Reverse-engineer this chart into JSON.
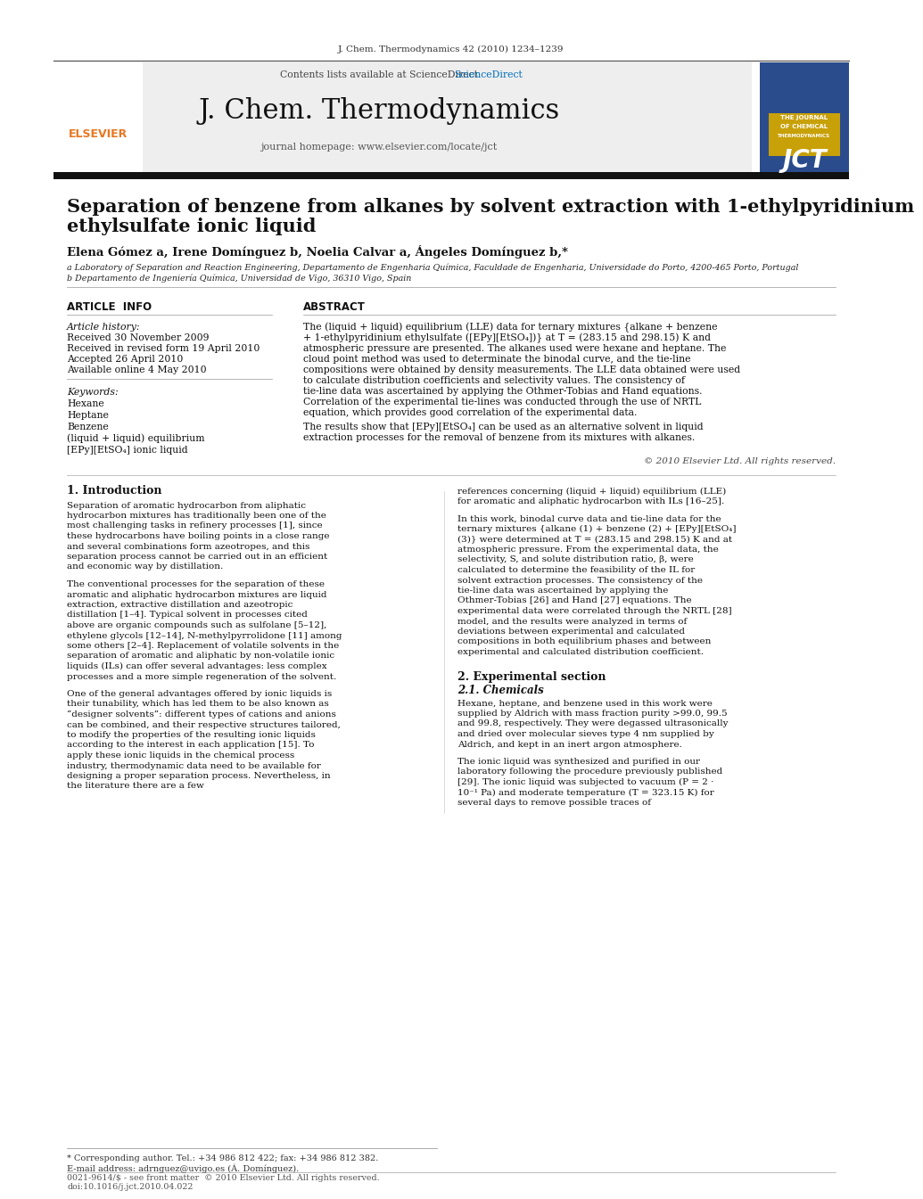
{
  "journal_ref": "J. Chem. Thermodynamics 42 (2010) 1234–1239",
  "contents_line": "Contents lists available at ScienceDirect",
  "sciencedirect_color": "#0070BB",
  "journal_name": "J. Chem. Thermodynamics",
  "journal_homepage": "journal homepage: www.elsevier.com/locate/jct",
  "title_line1": "Separation of benzene from alkanes by solvent extraction with 1-ethylpyridinium",
  "title_line2": "ethylsulfate ionic liquid",
  "authors": "Elena Gómez a, Irene Domínguez b, Noelia Calvar a, Ángeles Domínguez b,*",
  "affil_a": "a Laboratory of Separation and Reaction Engineering, Departamento de Engenharia Química, Faculdade de Engenharia, Universidade do Porto, 4200-465 Porto, Portugal",
  "affil_b": "b Departamento de Ingeniería Química, Universidad de Vigo, 36310 Vigo, Spain",
  "section_article_info": "ARTICLE  INFO",
  "section_abstract": "ABSTRACT",
  "article_history_label": "Article history:",
  "received": "Received 30 November 2009",
  "received_revised": "Received in revised form 19 April 2010",
  "accepted": "Accepted 26 April 2010",
  "available": "Available online 4 May 2010",
  "keywords_label": "Keywords:",
  "keywords": [
    "Hexane",
    "Heptane",
    "Benzene",
    "(liquid + liquid) equilibrium",
    "[EPy][EtSO₄] ionic liquid"
  ],
  "abstract_text": "The (liquid + liquid) equilibrium (LLE) data for ternary mixtures {alkane + benzene + 1-ethylpyridinium ethylsulfate ([EPy][EtSO₄])} at T = (283.15 and 298.15) K and atmospheric pressure are presented. The alkanes used were hexane and heptane. The cloud point method was used to determinate the binodal curve, and the tie-line compositions were obtained by density measurements. The LLE data obtained were used to calculate distribution coefficients and selectivity values. The consistency of tie-line data was ascertained by applying the Othmer-Tobias and Hand equations. Correlation of the experimental tie-lines was conducted through the use of NRTL equation, which provides good correlation of the experimental data.",
  "abstract_text2": "   The results show that [EPy][EtSO₄] can be used as an alternative solvent in liquid extraction processes for the removal of benzene from its mixtures with alkanes.",
  "copyright": "© 2010 Elsevier Ltd. All rights reserved.",
  "intro_heading": "1. Introduction",
  "intro_text1": "Separation of aromatic hydrocarbon from aliphatic hydrocarbon mixtures has traditionally been one of the most challenging tasks in refinery processes [1], since these hydrocarbons have boiling points in a close range and several combinations form azeotropes, and this separation process cannot be carried out in an efficient and economic way by distillation.",
  "intro_text2": "The conventional processes for the separation of these aromatic and aliphatic hydrocarbon mixtures are liquid extraction, extractive distillation and azeotropic distillation [1–4]. Typical solvent in processes cited above are organic compounds such as sulfolane [5–12], ethylene glycols [12–14], N-methylpyrrolidone [11] among some others [2–4]. Replacement of volatile solvents in the separation of aromatic and aliphatic by non-volatile ionic liquids (ILs) can offer several advantages: less complex processes and a more simple regeneration of the solvent.",
  "intro_text3": "One of the general advantages offered by ionic liquids is their tunability, which has led them to be also known as “designer solvents”: different types of cations and anions can be combined, and their respective structures tailored, to modify the properties of the resulting ionic liquids according to the interest in each application [15]. To apply these ionic liquids in the chemical process industry, thermodynamic data need to be available for designing a proper separation process. Nevertheless, in the literature there are a few",
  "right_col_text1": "references concerning (liquid + liquid) equilibrium (LLE) for aromatic and aliphatic hydrocarbon with ILs [16–25].",
  "right_col_text2": "In this work, binodal curve data and tie-line data for the ternary mixtures {alkane (1) + benzene (2) + [EPy][EtSO₄] (3)} were determined at T = (283.15 and 298.15) K and at atmospheric pressure. From the experimental data, the selectivity, S, and solute distribution ratio, β, were calculated to determine the feasibility of the IL for solvent extraction processes. The consistency of the tie-line data was ascertained by applying the Othmer-Tobias [26] and Hand [27] equations. The experimental data were correlated through the NRTL [28] model, and the results were analyzed in terms of deviations between experimental and calculated compositions in both equilibrium phases and between experimental and calculated distribution coefficient.",
  "exp_heading": "2. Experimental section",
  "chem_heading": "2.1. Chemicals",
  "chem_text": "Hexane, heptane, and benzene used in this work were supplied by Aldrich with mass fraction purity >99.0, 99.5 and 99.8, respectively. They were degassed ultrasonically and dried over molecular sieves type 4 nm supplied by Aldrich, and kept in an inert argon atmosphere.",
  "chem_text2": "The ionic liquid was synthesized and purified in our laboratory following the procedure previously published [29]. The ionic liquid was subjected to vacuum (P = 2 · 10⁻¹ Pa) and moderate temperature (T = 323.15 K) for several days to remove possible traces of",
  "footnote_asterisk": "* Corresponding author. Tel.: +34 986 812 422; fax: +34 986 812 382.",
  "footnote_email": "E-mail address: adrnguez@uvigo.es (Á. Domínguez).",
  "footer_left": "0021-9614/$ - see front matter  © 2010 Elsevier Ltd. All rights reserved.",
  "footer_doi": "doi:10.1016/j.jct.2010.04.022",
  "header_bg": "#eeeeee",
  "orange_color": "#E87722",
  "blue_color": "#0070BB",
  "body_bg": "#ffffff"
}
